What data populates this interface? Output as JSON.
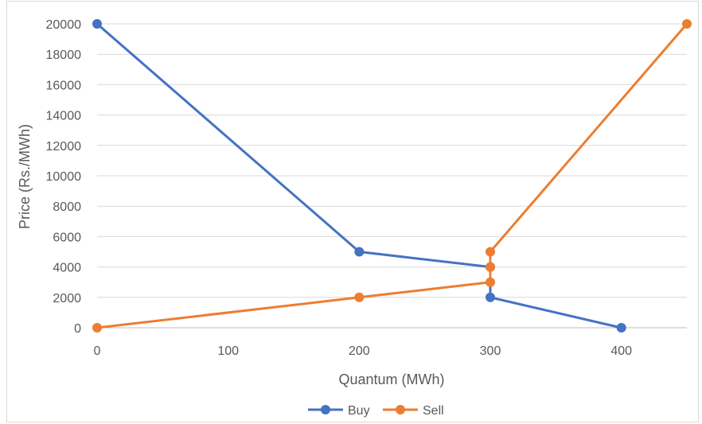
{
  "chart_data": {
    "type": "line",
    "xlabel": "Quantum (MWh)",
    "ylabel": "Price (Rs./MWh)",
    "xlim": [
      0,
      450
    ],
    "ylim": [
      0,
      20000
    ],
    "x_ticks": [
      0,
      100,
      200,
      300,
      400
    ],
    "y_ticks": [
      0,
      2000,
      4000,
      6000,
      8000,
      10000,
      12000,
      14000,
      16000,
      18000,
      20000
    ],
    "grid": "horizontal",
    "legend_position": "bottom",
    "series": [
      {
        "name": "Buy",
        "color": "#4472C4",
        "points": [
          [
            0,
            20000
          ],
          [
            200,
            5000
          ],
          [
            300,
            4000
          ],
          [
            300,
            2000
          ],
          [
            400,
            0
          ]
        ]
      },
      {
        "name": "Sell",
        "color": "#ED7D31",
        "points": [
          [
            0,
            0
          ],
          [
            200,
            2000
          ],
          [
            300,
            3000
          ],
          [
            300,
            4000
          ],
          [
            300,
            5000
          ],
          [
            450,
            20000
          ]
        ]
      }
    ]
  }
}
